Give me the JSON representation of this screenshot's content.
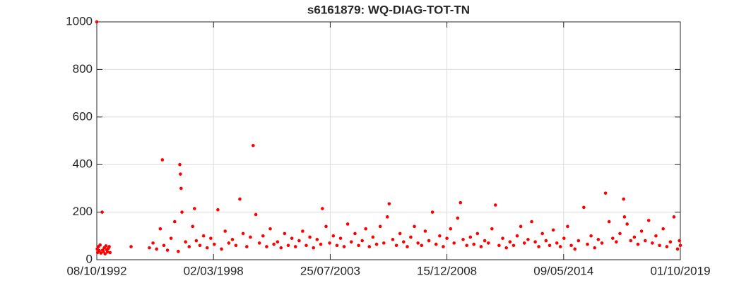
{
  "chart_data": {
    "type": "scatter",
    "title": "s6161879: WQ-DIAG-TOT-TN",
    "color": "#ff0000",
    "grid": true,
    "xlim": [
      "08/10/1992",
      "01/10/2019"
    ],
    "xticks": [
      "08/10/1992",
      "02/03/1998",
      "25/07/2003",
      "15/12/2008",
      "09/05/2014",
      "01/10/2019"
    ],
    "ylim": [
      0,
      1000
    ],
    "yticks": [
      0,
      200,
      400,
      600,
      800,
      1000
    ],
    "x": [
      "08/10/1992",
      "15/10/1992",
      "22/10/1992",
      "05/11/1992",
      "19/11/1992",
      "03/12/1992",
      "17/12/1992",
      "07/01/1993",
      "14/01/1993",
      "28/01/1993",
      "11/02/1993",
      "25/02/1993",
      "11/03/1993",
      "25/03/1993",
      "08/04/1993",
      "22/04/1993",
      "06/05/1993",
      "20/05/1993",
      "10/05/1994",
      "15/03/1995",
      "15/05/1995",
      "15/07/1995",
      "15/09/1995",
      "20/10/1995",
      "15/11/1995",
      "15/01/1996",
      "15/03/1996",
      "15/05/1996",
      "15/07/1996",
      "10/08/1996",
      "20/08/1996",
      "01/09/1996",
      "15/09/1996",
      "15/11/1996",
      "15/01/1997",
      "15/03/1997",
      "15/04/1997",
      "15/05/1997",
      "15/07/1997",
      "15/09/1997",
      "15/11/1997",
      "15/01/1998",
      "15/03/1998",
      "15/05/1998",
      "15/07/1998",
      "15/09/1998",
      "15/11/1998",
      "15/01/1999",
      "15/03/1999",
      "20/05/1999",
      "15/07/1999",
      "15/09/1999",
      "15/11/1999",
      "01/01/2000",
      "15/02/2000",
      "15/04/2000",
      "15/06/2000",
      "15/08/2000",
      "15/10/2000",
      "15/12/2000",
      "15/02/2001",
      "15/04/2001",
      "15/06/2001",
      "15/08/2001",
      "15/10/2001",
      "15/12/2001",
      "15/02/2002",
      "15/04/2002",
      "15/06/2002",
      "15/08/2002",
      "15/10/2002",
      "15/12/2002",
      "15/02/2003",
      "15/03/2003",
      "15/05/2003",
      "15/07/2003",
      "15/09/2003",
      "15/11/2003",
      "15/01/2004",
      "15/03/2004",
      "15/05/2004",
      "15/07/2004",
      "15/09/2004",
      "15/11/2004",
      "15/01/2005",
      "15/03/2005",
      "15/05/2005",
      "15/07/2005",
      "15/09/2005",
      "15/11/2005",
      "15/01/2006",
      "15/03/2006",
      "15/04/2006",
      "15/06/2006",
      "15/08/2006",
      "15/10/2006",
      "15/12/2006",
      "15/02/2007",
      "15/04/2007",
      "15/06/2007",
      "15/08/2007",
      "15/10/2007",
      "15/12/2007",
      "15/02/2008",
      "15/04/2008",
      "15/06/2008",
      "15/08/2008",
      "15/10/2008",
      "15/12/2008",
      "15/02/2009",
      "15/04/2009",
      "15/06/2009",
      "01/08/2009",
      "15/09/2009",
      "15/11/2009",
      "15/01/2010",
      "15/03/2010",
      "15/05/2010",
      "15/07/2010",
      "15/09/2010",
      "15/11/2010",
      "15/01/2011",
      "15/03/2011",
      "15/05/2011",
      "15/07/2011",
      "15/09/2011",
      "15/11/2011",
      "15/01/2012",
      "15/03/2012",
      "15/05/2012",
      "15/07/2012",
      "15/09/2012",
      "15/11/2012",
      "15/01/2013",
      "15/03/2013",
      "15/05/2013",
      "15/07/2013",
      "15/09/2013",
      "15/11/2013",
      "15/01/2014",
      "15/03/2014",
      "15/05/2014",
      "15/07/2014",
      "15/09/2014",
      "15/11/2014",
      "15/01/2015",
      "15/04/2015",
      "15/06/2015",
      "15/08/2015",
      "15/10/2015",
      "15/12/2015",
      "15/02/2016",
      "15/04/2016",
      "15/06/2016",
      "15/08/2016",
      "15/10/2016",
      "15/12/2016",
      "15/02/2017",
      "01/03/2017",
      "15/04/2017",
      "15/06/2017",
      "15/08/2017",
      "15/10/2017",
      "15/12/2017",
      "15/02/2018",
      "15/04/2018",
      "15/06/2018",
      "15/08/2018",
      "15/10/2018",
      "15/12/2018",
      "15/02/2019",
      "15/04/2019",
      "15/06/2019",
      "15/08/2019",
      "15/09/2019",
      "01/10/2019"
    ],
    "values": [
      1000,
      45,
      30,
      55,
      38,
      62,
      28,
      200,
      40,
      35,
      50,
      25,
      58,
      42,
      33,
      48,
      55,
      30,
      55,
      50,
      70,
      45,
      130,
      420,
      60,
      40,
      90,
      160,
      35,
      400,
      360,
      300,
      200,
      75,
      55,
      140,
      215,
      80,
      60,
      100,
      50,
      90,
      65,
      210,
      45,
      120,
      70,
      85,
      60,
      255,
      110,
      55,
      95,
      480,
      190,
      70,
      100,
      55,
      130,
      65,
      75,
      50,
      110,
      60,
      90,
      55,
      80,
      120,
      60,
      95,
      50,
      85,
      65,
      215,
      140,
      70,
      100,
      60,
      90,
      55,
      150,
      75,
      110,
      60,
      80,
      130,
      55,
      95,
      65,
      140,
      70,
      180,
      235,
      85,
      60,
      110,
      75,
      55,
      95,
      140,
      70,
      60,
      120,
      80,
      200,
      65,
      100,
      55,
      90,
      130,
      70,
      175,
      240,
      85,
      60,
      95,
      65,
      110,
      55,
      80,
      70,
      130,
      230,
      60,
      90,
      50,
      75,
      60,
      100,
      140,
      70,
      85,
      160,
      75,
      55,
      110,
      80,
      60,
      125,
      70,
      55,
      90,
      140,
      60,
      45,
      80,
      220,
      65,
      100,
      50,
      85,
      70,
      280,
      160,
      90,
      75,
      110,
      255,
      180,
      150,
      80,
      95,
      65,
      120,
      80,
      165,
      70,
      100,
      60,
      130,
      55,
      75,
      180,
      45,
      80,
      60
    ]
  }
}
